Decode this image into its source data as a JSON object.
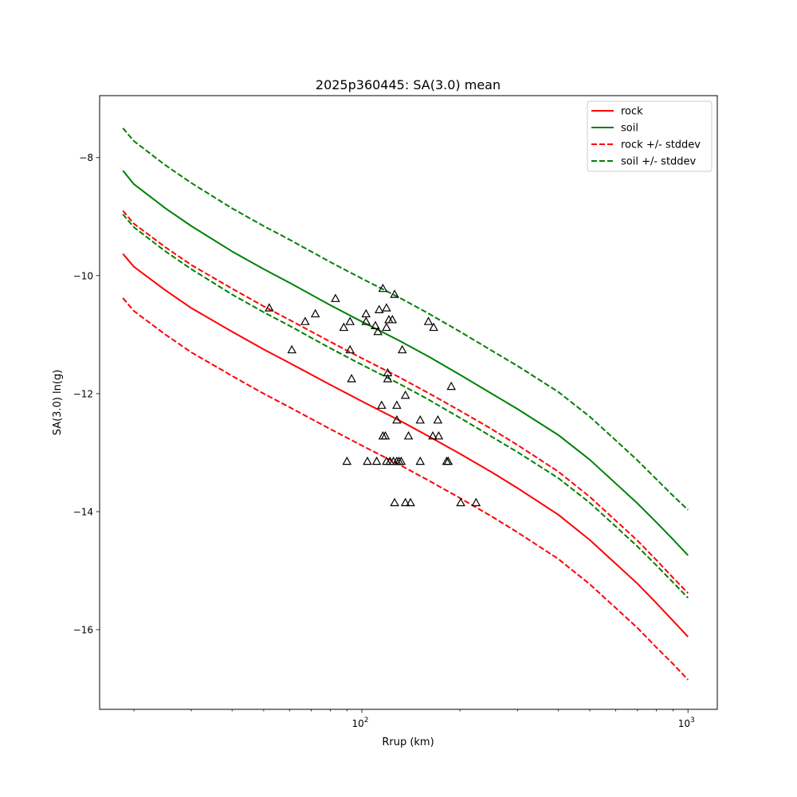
{
  "chart_data": {
    "type": "line",
    "title": "2025p360445: SA(3.0) mean",
    "xlabel": "Rrup (km)",
    "ylabel": "SA(3.0) ln(g)",
    "xscale": "log",
    "xlim": [
      15.7,
      1230
    ],
    "ylim": [
      -17.35,
      -6.95
    ],
    "grid": false,
    "legend_position": "top-right",
    "x_ticks": [
      {
        "value": 100,
        "label": "10",
        "exp": "2"
      },
      {
        "value": 1000,
        "label": "10",
        "exp": "3"
      }
    ],
    "y_ticks": [
      -8,
      -10,
      -12,
      -14,
      -16
    ],
    "x": [
      18.5,
      20,
      25,
      30,
      40,
      50,
      60,
      80,
      100,
      130,
      160,
      200,
      250,
      300,
      400,
      500,
      600,
      700,
      800,
      900,
      1000
    ],
    "series": [
      {
        "name": "rock",
        "color": "#ff0000",
        "dash": false,
        "values": [
          -9.63,
          -9.85,
          -10.25,
          -10.55,
          -10.95,
          -11.25,
          -11.48,
          -11.85,
          -12.13,
          -12.45,
          -12.72,
          -13.02,
          -13.33,
          -13.6,
          -14.05,
          -14.48,
          -14.88,
          -15.22,
          -15.55,
          -15.85,
          -16.12
        ]
      },
      {
        "name": "soil",
        "color": "#008000",
        "dash": false,
        "values": [
          -8.22,
          -8.45,
          -8.86,
          -9.16,
          -9.59,
          -9.89,
          -10.12,
          -10.5,
          -10.78,
          -11.1,
          -11.37,
          -11.68,
          -12.0,
          -12.26,
          -12.7,
          -13.12,
          -13.52,
          -13.86,
          -14.18,
          -14.47,
          -14.74
        ]
      },
      {
        "name": "rock +/- stddev",
        "color": "#ff0000",
        "dash": true,
        "values": [
          -8.9,
          -9.12,
          -9.52,
          -9.82,
          -10.22,
          -10.52,
          -10.75,
          -11.12,
          -11.4,
          -11.72,
          -11.99,
          -12.29,
          -12.6,
          -12.87,
          -13.32,
          -13.75,
          -14.15,
          -14.49,
          -14.82,
          -15.12,
          -15.38
        ]
      },
      {
        "name": "rock +/- stddev (lower)",
        "color": "#ff0000",
        "dash": true,
        "legend": false,
        "values": [
          -10.38,
          -10.6,
          -11.0,
          -11.3,
          -11.7,
          -12.0,
          -12.23,
          -12.6,
          -12.88,
          -13.2,
          -13.47,
          -13.77,
          -14.08,
          -14.35,
          -14.8,
          -15.23,
          -15.63,
          -15.97,
          -16.3,
          -16.58,
          -16.85
        ]
      },
      {
        "name": "soil +/- stddev",
        "color": "#008000",
        "dash": true,
        "values": [
          -7.5,
          -7.72,
          -8.13,
          -8.43,
          -8.86,
          -9.16,
          -9.39,
          -9.77,
          -10.05,
          -10.37,
          -10.64,
          -10.95,
          -11.27,
          -11.53,
          -11.97,
          -12.39,
          -12.79,
          -13.13,
          -13.45,
          -13.73,
          -13.97
        ]
      },
      {
        "name": "soil +/- stddev (lower)",
        "color": "#008000",
        "dash": true,
        "legend": false,
        "values": [
          -8.96,
          -9.18,
          -9.59,
          -9.89,
          -10.32,
          -10.62,
          -10.85,
          -11.23,
          -11.51,
          -11.83,
          -12.1,
          -12.41,
          -12.73,
          -12.99,
          -13.43,
          -13.85,
          -14.25,
          -14.59,
          -14.91,
          -15.2,
          -15.46
        ]
      }
    ],
    "legend": [
      {
        "label": "rock",
        "color": "#ff0000",
        "dash": false
      },
      {
        "label": "soil",
        "color": "#008000",
        "dash": false
      },
      {
        "label": "rock +/- stddev",
        "color": "#ff0000",
        "dash": true
      },
      {
        "label": "soil +/- stddev",
        "color": "#008000",
        "dash": true
      }
    ],
    "observations": {
      "marker": "triangle-open",
      "color": "#000000",
      "points": [
        [
          52,
          -10.55
        ],
        [
          67,
          -10.78
        ],
        [
          72,
          -10.65
        ],
        [
          61,
          -11.26
        ],
        [
          83,
          -10.39
        ],
        [
          88,
          -10.88
        ],
        [
          92,
          -10.78
        ],
        [
          92,
          -11.26
        ],
        [
          93,
          -11.75
        ],
        [
          90,
          -13.15
        ],
        [
          103,
          -10.65
        ],
        [
          103,
          -10.78
        ],
        [
          104,
          -13.15
        ],
        [
          110,
          -10.85
        ],
        [
          112,
          -10.95
        ],
        [
          113,
          -10.58
        ],
        [
          111,
          -13.15
        ],
        [
          116,
          -10.22
        ],
        [
          119,
          -10.55
        ],
        [
          119,
          -10.88
        ],
        [
          121,
          -10.75
        ],
        [
          124,
          -10.75
        ],
        [
          126,
          -10.32
        ],
        [
          120,
          -11.65
        ],
        [
          120,
          -11.75
        ],
        [
          115,
          -12.2
        ],
        [
          116,
          -12.72
        ],
        [
          118,
          -12.72
        ],
        [
          119,
          -13.15
        ],
        [
          122,
          -13.15
        ],
        [
          125,
          -13.15
        ],
        [
          128,
          -13.15
        ],
        [
          130,
          -13.15
        ],
        [
          132,
          -13.15
        ],
        [
          128,
          -12.2
        ],
        [
          128,
          -12.45
        ],
        [
          133,
          -11.26
        ],
        [
          136,
          -12.03
        ],
        [
          139,
          -12.72
        ],
        [
          126,
          -13.85
        ],
        [
          136,
          -13.85
        ],
        [
          141,
          -13.85
        ],
        [
          151,
          -12.45
        ],
        [
          151,
          -13.15
        ],
        [
          160,
          -10.78
        ],
        [
          166,
          -10.88
        ],
        [
          165,
          -12.72
        ],
        [
          171,
          -12.45
        ],
        [
          172,
          -12.72
        ],
        [
          182,
          -13.15
        ],
        [
          184,
          -13.15
        ],
        [
          188,
          -11.88
        ],
        [
          201,
          -13.85
        ],
        [
          224,
          -13.85
        ]
      ]
    }
  }
}
